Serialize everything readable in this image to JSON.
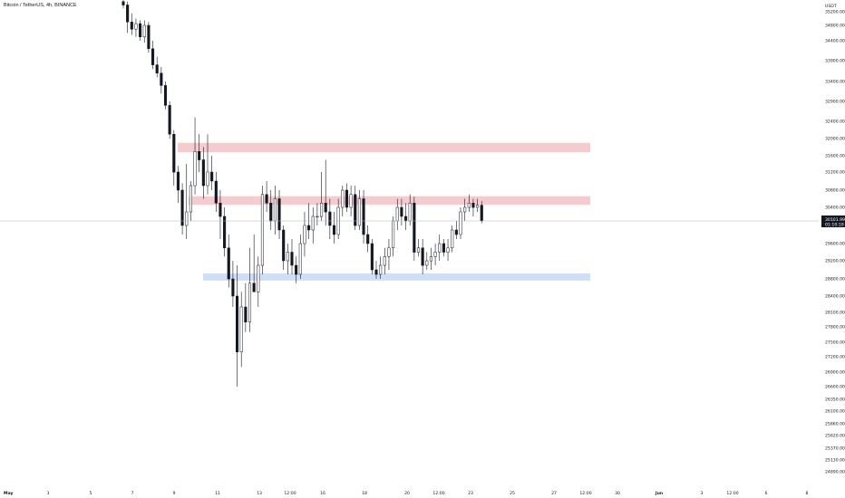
{
  "header": {
    "title": "Bitcoin / TetherUS, 4h, BINANCE"
  },
  "chart_data": {
    "type": "candlestick",
    "currency": "USDT",
    "ylim": [
      24690,
      35400
    ],
    "y_ticks": [
      {
        "value": 35200,
        "label": "35200.00"
      },
      {
        "value": 34800,
        "label": "34800.00"
      },
      {
        "value": 34400,
        "label": "34400.00"
      },
      {
        "value": 33900,
        "label": "33900.00"
      },
      {
        "value": 33400,
        "label": "33400.00"
      },
      {
        "value": 32900,
        "label": "32900.00"
      },
      {
        "value": 32400,
        "label": "32400.00"
      },
      {
        "value": 32000,
        "label": "32000.00"
      },
      {
        "value": 31600,
        "label": "31600.00"
      },
      {
        "value": 31200,
        "label": "31200.00"
      },
      {
        "value": 30800,
        "label": "30800.00"
      },
      {
        "value": 30400,
        "label": "30400.00"
      },
      {
        "value": 29600,
        "label": "29600.00"
      },
      {
        "value": 29200,
        "label": "29200.00"
      },
      {
        "value": 28800,
        "label": "28800.00"
      },
      {
        "value": 28400,
        "label": "28400.00"
      },
      {
        "value": 28100,
        "label": "28100.00"
      },
      {
        "value": 27800,
        "label": "27800.00"
      },
      {
        "value": 27500,
        "label": "27500.00"
      },
      {
        "value": 27200,
        "label": "27200.00"
      },
      {
        "value": 26900,
        "label": "26900.00"
      },
      {
        "value": 26600,
        "label": "26600.00"
      },
      {
        "value": 26350,
        "label": "26350.00"
      },
      {
        "value": 26100,
        "label": "26100.00"
      },
      {
        "value": 25860,
        "label": "25860.00"
      },
      {
        "value": 25620,
        "label": "25620.00"
      },
      {
        "value": 25370,
        "label": "25370.00"
      },
      {
        "value": 25130,
        "label": "25130.00"
      },
      {
        "value": 24890,
        "label": "24890.00"
      }
    ],
    "x_ticks": [
      {
        "label": "May",
        "bold": true
      },
      {
        "label": "3",
        "bold": false
      },
      {
        "label": "5",
        "bold": false
      },
      {
        "label": "7",
        "bold": false
      },
      {
        "label": "9",
        "bold": false
      },
      {
        "label": "11",
        "bold": false
      },
      {
        "label": "13",
        "bold": false
      },
      {
        "label": "12:00",
        "bold": false
      },
      {
        "label": "16",
        "bold": false
      },
      {
        "label": "18",
        "bold": false
      },
      {
        "label": "20",
        "bold": false
      },
      {
        "label": "12:00",
        "bold": false
      },
      {
        "label": "23",
        "bold": false
      },
      {
        "label": "25",
        "bold": false
      },
      {
        "label": "27",
        "bold": false
      },
      {
        "label": "12:00",
        "bold": false
      },
      {
        "label": "30",
        "bold": false
      },
      {
        "label": "Jun",
        "bold": true
      },
      {
        "label": "3",
        "bold": false
      },
      {
        "label": "12:00",
        "bold": false
      },
      {
        "label": "6",
        "bold": false
      },
      {
        "label": "8",
        "bold": false
      }
    ],
    "zones": [
      {
        "name": "resistance-upper",
        "from": 31680,
        "to": 31900,
        "color": "#f5c2c7"
      },
      {
        "name": "resistance-lower",
        "from": 30460,
        "to": 30660,
        "color": "#f5c2c7"
      },
      {
        "name": "support",
        "from": 28760,
        "to": 28920,
        "color": "#c8d8f6"
      }
    ],
    "last_price": {
      "value": 30101.99,
      "label": "30101.99",
      "timer": "01:10:10",
      "color": "#131722"
    },
    "candles": [
      {
        "o": 35500,
        "h": 35600,
        "l": 35300,
        "c": 35400
      },
      {
        "o": 35400,
        "h": 35500,
        "l": 34600,
        "c": 34900
      },
      {
        "o": 34900,
        "h": 35150,
        "l": 34550,
        "c": 34700
      },
      {
        "o": 34700,
        "h": 35000,
        "l": 34500,
        "c": 34850
      },
      {
        "o": 34850,
        "h": 34950,
        "l": 34400,
        "c": 34500
      },
      {
        "o": 34500,
        "h": 34950,
        "l": 34350,
        "c": 34800
      },
      {
        "o": 34800,
        "h": 34900,
        "l": 34100,
        "c": 34200
      },
      {
        "o": 34200,
        "h": 34400,
        "l": 33700,
        "c": 33800
      },
      {
        "o": 33800,
        "h": 34000,
        "l": 33500,
        "c": 33600
      },
      {
        "o": 33600,
        "h": 33750,
        "l": 33100,
        "c": 33300
      },
      {
        "o": 33300,
        "h": 33400,
        "l": 32700,
        "c": 32800
      },
      {
        "o": 32800,
        "h": 32900,
        "l": 32000,
        "c": 32100
      },
      {
        "o": 32100,
        "h": 32200,
        "l": 30900,
        "c": 31200
      },
      {
        "o": 31200,
        "h": 31350,
        "l": 30500,
        "c": 30800
      },
      {
        "o": 30800,
        "h": 30950,
        "l": 29800,
        "c": 30000
      },
      {
        "o": 30000,
        "h": 31400,
        "l": 29700,
        "c": 30300
      },
      {
        "o": 30300,
        "h": 31000,
        "l": 30100,
        "c": 30900
      },
      {
        "o": 30900,
        "h": 32500,
        "l": 30700,
        "c": 31700
      },
      {
        "o": 31700,
        "h": 32100,
        "l": 31200,
        "c": 31500
      },
      {
        "o": 31500,
        "h": 31800,
        "l": 30600,
        "c": 30900
      },
      {
        "o": 30900,
        "h": 32100,
        "l": 30700,
        "c": 31200
      },
      {
        "o": 31200,
        "h": 31600,
        "l": 30800,
        "c": 31000
      },
      {
        "o": 31000,
        "h": 31200,
        "l": 30300,
        "c": 30500
      },
      {
        "o": 30500,
        "h": 30800,
        "l": 29700,
        "c": 30200
      },
      {
        "o": 30200,
        "h": 30400,
        "l": 29300,
        "c": 29500
      },
      {
        "o": 29500,
        "h": 29800,
        "l": 28600,
        "c": 28800
      },
      {
        "o": 28800,
        "h": 29200,
        "l": 28200,
        "c": 28400
      },
      {
        "o": 28400,
        "h": 29100,
        "l": 26600,
        "c": 27300
      },
      {
        "o": 27300,
        "h": 28500,
        "l": 27000,
        "c": 28200
      },
      {
        "o": 28200,
        "h": 28700,
        "l": 27700,
        "c": 27900
      },
      {
        "o": 27900,
        "h": 29500,
        "l": 27700,
        "c": 28700
      },
      {
        "o": 28700,
        "h": 29800,
        "l": 28500,
        "c": 28500
      },
      {
        "o": 28500,
        "h": 29300,
        "l": 28200,
        "c": 29100
      },
      {
        "o": 29100,
        "h": 30900,
        "l": 28900,
        "c": 30700
      },
      {
        "o": 30700,
        "h": 31000,
        "l": 30300,
        "c": 30500
      },
      {
        "o": 30500,
        "h": 30800,
        "l": 29900,
        "c": 30100
      },
      {
        "o": 30100,
        "h": 30900,
        "l": 29800,
        "c": 30600
      },
      {
        "o": 30600,
        "h": 30800,
        "l": 29700,
        "c": 29900
      },
      {
        "o": 29900,
        "h": 30000,
        "l": 29000,
        "c": 29200
      },
      {
        "o": 29200,
        "h": 29600,
        "l": 28900,
        "c": 29400
      },
      {
        "o": 29400,
        "h": 29700,
        "l": 28900,
        "c": 29100
      },
      {
        "o": 29100,
        "h": 29300,
        "l": 28700,
        "c": 28900
      },
      {
        "o": 28900,
        "h": 29800,
        "l": 28800,
        "c": 29600
      },
      {
        "o": 29600,
        "h": 30300,
        "l": 29300,
        "c": 30000
      },
      {
        "o": 30000,
        "h": 30500,
        "l": 29700,
        "c": 29900
      },
      {
        "o": 29900,
        "h": 30400,
        "l": 29600,
        "c": 30200
      },
      {
        "o": 30200,
        "h": 30500,
        "l": 30000,
        "c": 30200
      },
      {
        "o": 30200,
        "h": 31200,
        "l": 30100,
        "c": 30500
      },
      {
        "o": 30500,
        "h": 31500,
        "l": 30000,
        "c": 30300
      },
      {
        "o": 30300,
        "h": 30600,
        "l": 29700,
        "c": 30000
      },
      {
        "o": 30000,
        "h": 30300,
        "l": 29600,
        "c": 29800
      },
      {
        "o": 29800,
        "h": 30600,
        "l": 29700,
        "c": 30400
      },
      {
        "o": 30400,
        "h": 30900,
        "l": 30200,
        "c": 30800
      },
      {
        "o": 30800,
        "h": 30950,
        "l": 30300,
        "c": 30400
      },
      {
        "o": 30400,
        "h": 30900,
        "l": 30200,
        "c": 30700
      },
      {
        "o": 30700,
        "h": 30900,
        "l": 29900,
        "c": 30000
      },
      {
        "o": 30000,
        "h": 30800,
        "l": 29900,
        "c": 30600
      },
      {
        "o": 30600,
        "h": 30800,
        "l": 29600,
        "c": 29800
      },
      {
        "o": 29800,
        "h": 30000,
        "l": 29400,
        "c": 29600
      },
      {
        "o": 29600,
        "h": 29700,
        "l": 28900,
        "c": 29000
      },
      {
        "o": 29000,
        "h": 29200,
        "l": 28800,
        "c": 28900
      },
      {
        "o": 28900,
        "h": 29300,
        "l": 28800,
        "c": 29100
      },
      {
        "o": 29100,
        "h": 29500,
        "l": 28900,
        "c": 29300
      },
      {
        "o": 29300,
        "h": 29700,
        "l": 29000,
        "c": 29500
      },
      {
        "o": 29500,
        "h": 30200,
        "l": 29300,
        "c": 30100
      },
      {
        "o": 30100,
        "h": 30600,
        "l": 29900,
        "c": 30400
      },
      {
        "o": 30400,
        "h": 30600,
        "l": 30000,
        "c": 30200
      },
      {
        "o": 30200,
        "h": 30500,
        "l": 29900,
        "c": 30100
      },
      {
        "o": 30100,
        "h": 30700,
        "l": 30000,
        "c": 30500
      },
      {
        "o": 30500,
        "h": 30650,
        "l": 29200,
        "c": 29400
      },
      {
        "o": 29400,
        "h": 29700,
        "l": 29300,
        "c": 29500
      },
      {
        "o": 29500,
        "h": 29700,
        "l": 28900,
        "c": 29100
      },
      {
        "o": 29100,
        "h": 29400,
        "l": 29000,
        "c": 29200
      },
      {
        "o": 29200,
        "h": 29500,
        "l": 29000,
        "c": 29300
      },
      {
        "o": 29300,
        "h": 29600,
        "l": 29100,
        "c": 29400
      },
      {
        "o": 29400,
        "h": 29800,
        "l": 29200,
        "c": 29600
      },
      {
        "o": 29600,
        "h": 29700,
        "l": 29300,
        "c": 29400
      },
      {
        "o": 29400,
        "h": 29700,
        "l": 29200,
        "c": 29500
      },
      {
        "o": 29500,
        "h": 30000,
        "l": 29400,
        "c": 29900
      },
      {
        "o": 29900,
        "h": 30100,
        "l": 29700,
        "c": 29800
      },
      {
        "o": 29800,
        "h": 30400,
        "l": 29700,
        "c": 30300
      },
      {
        "o": 30300,
        "h": 30600,
        "l": 30100,
        "c": 30400
      },
      {
        "o": 30400,
        "h": 30700,
        "l": 30300,
        "c": 30500
      },
      {
        "o": 30500,
        "h": 30600,
        "l": 30200,
        "c": 30400
      },
      {
        "o": 30400,
        "h": 30600,
        "l": 30300,
        "c": 30450
      },
      {
        "o": 30450,
        "h": 30550,
        "l": 30050,
        "c": 30102
      }
    ]
  }
}
